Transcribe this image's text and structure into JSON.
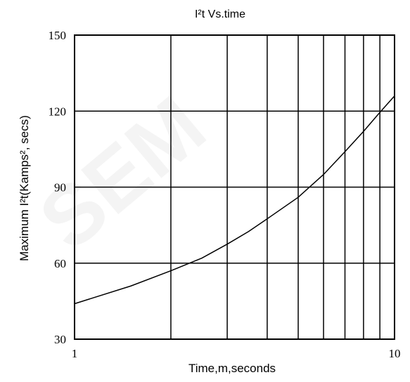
{
  "chart_data": {
    "type": "line",
    "title": "I²t  Vs.time",
    "xlabel": "Time,m,seconds",
    "ylabel": "Maximum I²t(Kamps², secs)",
    "x_scale": "log",
    "xlim": [
      1,
      10
    ],
    "ylim": [
      30,
      150
    ],
    "x_ticks": [
      1,
      10
    ],
    "y_ticks": [
      30,
      60,
      90,
      120,
      150
    ],
    "grid": true,
    "series": [
      {
        "x": [
          1,
          1.5,
          2,
          2.5,
          3,
          3.5,
          4,
          5,
          6,
          7,
          8,
          9,
          10
        ],
        "y": [
          44,
          51,
          57,
          62,
          67.5,
          72.5,
          77.5,
          86,
          95,
          104,
          112,
          119.5,
          126
        ]
      }
    ]
  },
  "watermark": "SEM"
}
